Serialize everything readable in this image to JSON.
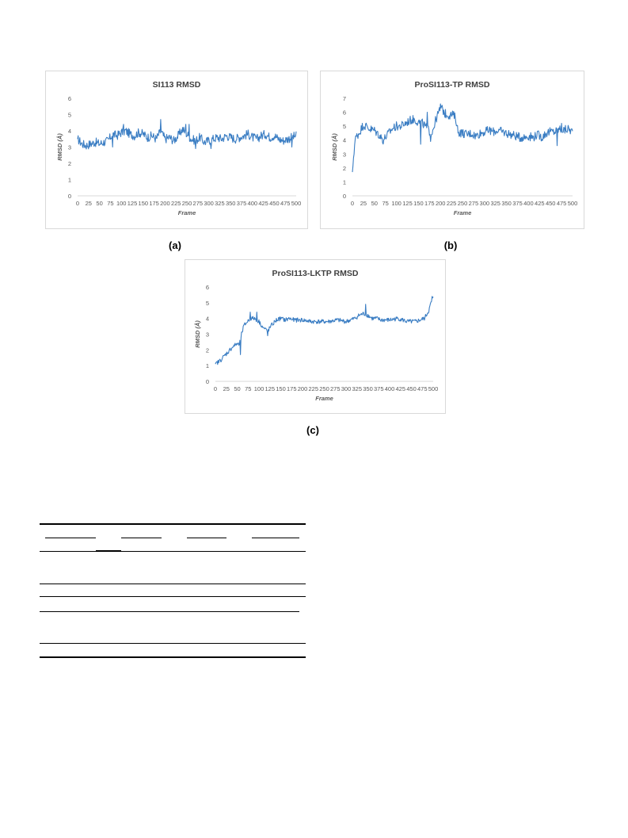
{
  "colors": {
    "series": "#3a7dc3",
    "text": "#595959",
    "title": "#404040",
    "border": "#d9d9d9"
  },
  "captions": [
    "(a)",
    "(b)",
    "(c)"
  ],
  "chart_data": [
    {
      "type": "line",
      "title": "SI113 RMSD",
      "xlabel": "Frame",
      "ylabel": "RMSD (Å)",
      "xlim": [
        0,
        500
      ],
      "ylim": [
        0,
        6
      ],
      "x_ticks": [
        0,
        25,
        50,
        75,
        100,
        125,
        150,
        175,
        200,
        225,
        250,
        275,
        300,
        325,
        350,
        375,
        400,
        425,
        450,
        475,
        500
      ],
      "y_ticks": [
        0,
        1,
        2,
        3,
        4,
        5,
        6
      ],
      "grid": false,
      "series": [
        {
          "x": [
            0,
            10,
            20,
            30,
            40,
            50,
            60,
            70,
            80,
            90,
            100,
            110,
            120,
            130,
            140,
            150,
            160,
            170,
            180,
            190,
            200,
            210,
            220,
            230,
            240,
            250,
            260,
            270,
            280,
            290,
            300,
            310,
            320,
            330,
            340,
            350,
            360,
            370,
            380,
            390,
            400,
            410,
            420,
            430,
            440,
            450,
            460,
            470,
            480,
            490,
            500
          ],
          "y": [
            3.5,
            3.2,
            3.1,
            3.2,
            3.3,
            3.2,
            3.3,
            3.4,
            3.8,
            3.7,
            3.9,
            4.0,
            3.8,
            3.7,
            3.9,
            3.8,
            3.6,
            3.7,
            3.5,
            4.0,
            3.5,
            3.6,
            3.4,
            3.7,
            4.1,
            3.8,
            3.5,
            3.4,
            3.6,
            3.3,
            3.4,
            3.5,
            3.6,
            3.5,
            3.7,
            3.6,
            3.5,
            3.6,
            3.7,
            3.8,
            3.6,
            3.5,
            3.7,
            3.8,
            3.6,
            3.7,
            3.5,
            3.4,
            3.5,
            3.6,
            3.7
          ],
          "noise": 0.28,
          "spikes": [
            [
              190,
              4.7
            ],
            [
              248,
              4.4
            ],
            [
              255,
              4.4
            ],
            [
              105,
              4.4
            ],
            [
              80,
              3.0
            ],
            [
              270,
              2.9
            ],
            [
              305,
              2.9
            ],
            [
              490,
              3.0
            ]
          ]
        }
      ]
    },
    {
      "type": "line",
      "title": "ProSI113-TP RMSD",
      "xlabel": "Frame",
      "ylabel": "RMSD (Å)",
      "xlim": [
        0,
        500
      ],
      "ylim": [
        0,
        7
      ],
      "x_ticks": [
        0,
        25,
        50,
        75,
        100,
        125,
        150,
        175,
        200,
        225,
        250,
        275,
        300,
        325,
        350,
        375,
        400,
        425,
        450,
        475,
        500
      ],
      "y_ticks": [
        0,
        1,
        2,
        3,
        4,
        5,
        6,
        7
      ],
      "grid": false,
      "series": [
        {
          "x": [
            0,
            3,
            6,
            10,
            15,
            20,
            25,
            30,
            40,
            50,
            60,
            70,
            80,
            90,
            100,
            110,
            120,
            130,
            140,
            150,
            160,
            170,
            180,
            190,
            200,
            205,
            210,
            220,
            230,
            235,
            240,
            250,
            260,
            270,
            280,
            290,
            300,
            310,
            320,
            330,
            340,
            350,
            360,
            370,
            380,
            390,
            400,
            410,
            420,
            430,
            440,
            450,
            460,
            470,
            480,
            490,
            500
          ],
          "y": [
            1.7,
            3.0,
            4.0,
            4.3,
            4.5,
            4.8,
            5.1,
            5.0,
            4.8,
            4.7,
            4.4,
            4.0,
            4.4,
            4.8,
            5.0,
            5.0,
            5.2,
            5.4,
            5.5,
            5.3,
            5.2,
            4.8,
            4.5,
            5.5,
            6.3,
            6.2,
            5.9,
            5.8,
            5.8,
            5.5,
            4.6,
            4.5,
            4.4,
            4.5,
            4.3,
            4.5,
            4.6,
            4.7,
            4.6,
            4.7,
            4.6,
            4.5,
            4.4,
            4.3,
            4.2,
            4.2,
            4.3,
            4.2,
            4.4,
            4.2,
            4.5,
            4.6,
            4.6,
            4.8,
            4.7,
            4.8,
            4.6
          ],
          "noise": 0.32,
          "spikes": [
            [
              200,
              6.6
            ],
            [
              170,
              6.0
            ],
            [
              155,
              3.7
            ],
            [
              72,
              3.2
            ],
            [
              178,
              3.9
            ],
            [
              465,
              3.6
            ],
            [
              475,
              5.2
            ]
          ]
        }
      ]
    },
    {
      "type": "line",
      "title": "ProSI113-LKTP RMSD",
      "xlabel": "Frame",
      "ylabel": "RMSD (Å)",
      "xlim": [
        0,
        500
      ],
      "ylim": [
        0,
        6
      ],
      "x_ticks": [
        0,
        25,
        50,
        75,
        100,
        125,
        150,
        175,
        200,
        225,
        250,
        275,
        300,
        325,
        350,
        375,
        400,
        425,
        450,
        475,
        500
      ],
      "y_ticks": [
        0,
        1,
        2,
        3,
        4,
        5,
        6
      ],
      "grid": false,
      "series": [
        {
          "x": [
            0,
            10,
            20,
            30,
            40,
            50,
            55,
            60,
            65,
            70,
            80,
            90,
            100,
            110,
            120,
            130,
            140,
            150,
            160,
            170,
            180,
            200,
            220,
            240,
            260,
            280,
            300,
            320,
            330,
            340,
            350,
            360,
            370,
            380,
            400,
            420,
            440,
            460,
            470,
            480,
            490,
            495,
            500
          ],
          "y": [
            1.1,
            1.3,
            1.6,
            1.9,
            2.2,
            2.4,
            2.3,
            3.0,
            3.5,
            3.7,
            4.0,
            4.0,
            3.8,
            3.4,
            3.2,
            3.6,
            3.9,
            4.0,
            3.9,
            4.0,
            3.9,
            3.9,
            3.8,
            3.8,
            3.8,
            3.9,
            3.8,
            4.0,
            4.2,
            4.3,
            4.2,
            4.0,
            4.0,
            3.9,
            3.9,
            4.0,
            3.8,
            3.8,
            3.9,
            4.0,
            4.5,
            5.0,
            5.3
          ],
          "noise": 0.14,
          "spikes": [
            [
              80,
              4.4
            ],
            [
              95,
              4.4
            ],
            [
              345,
              4.9
            ],
            [
              498,
              5.4
            ],
            [
              58,
              1.7
            ],
            [
              120,
              2.9
            ]
          ]
        }
      ]
    }
  ]
}
